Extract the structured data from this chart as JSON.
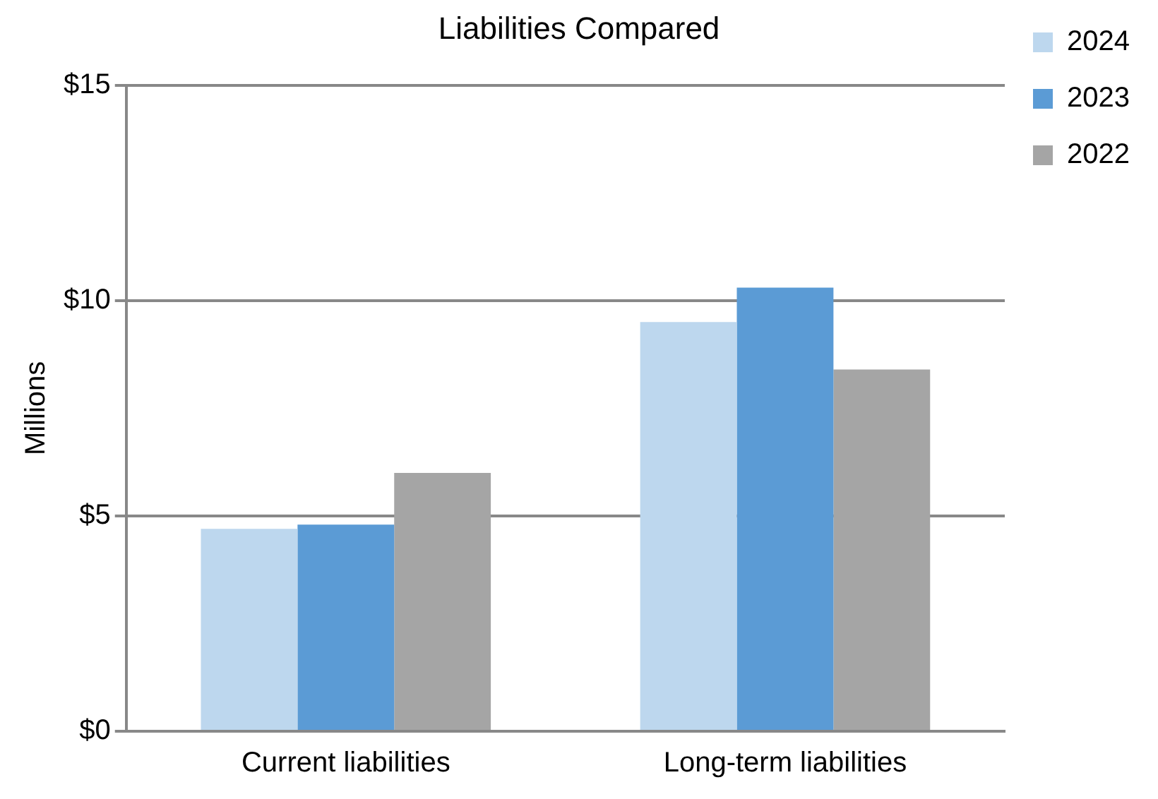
{
  "chart_data": {
    "type": "bar",
    "title": "Liabilities Compared",
    "ylabel": "Millions",
    "categories": [
      "Current liabilities",
      "Long-term liabilities"
    ],
    "series": [
      {
        "name": "2024",
        "color": "#bdd7ee",
        "values": [
          4.7,
          9.5
        ]
      },
      {
        "name": "2023",
        "color": "#5b9bd5",
        "values": [
          4.8,
          10.3
        ]
      },
      {
        "name": "2022",
        "color": "#a5a5a5",
        "values": [
          6.0,
          8.4
        ]
      }
    ],
    "ylim": [
      0,
      15
    ],
    "yticks": [
      {
        "value": 0,
        "label": "$0"
      },
      {
        "value": 5,
        "label": "$5"
      },
      {
        "value": 10,
        "label": "$10"
      },
      {
        "value": 15,
        "label": "$15"
      }
    ],
    "grid": "y",
    "legend": "top right"
  }
}
